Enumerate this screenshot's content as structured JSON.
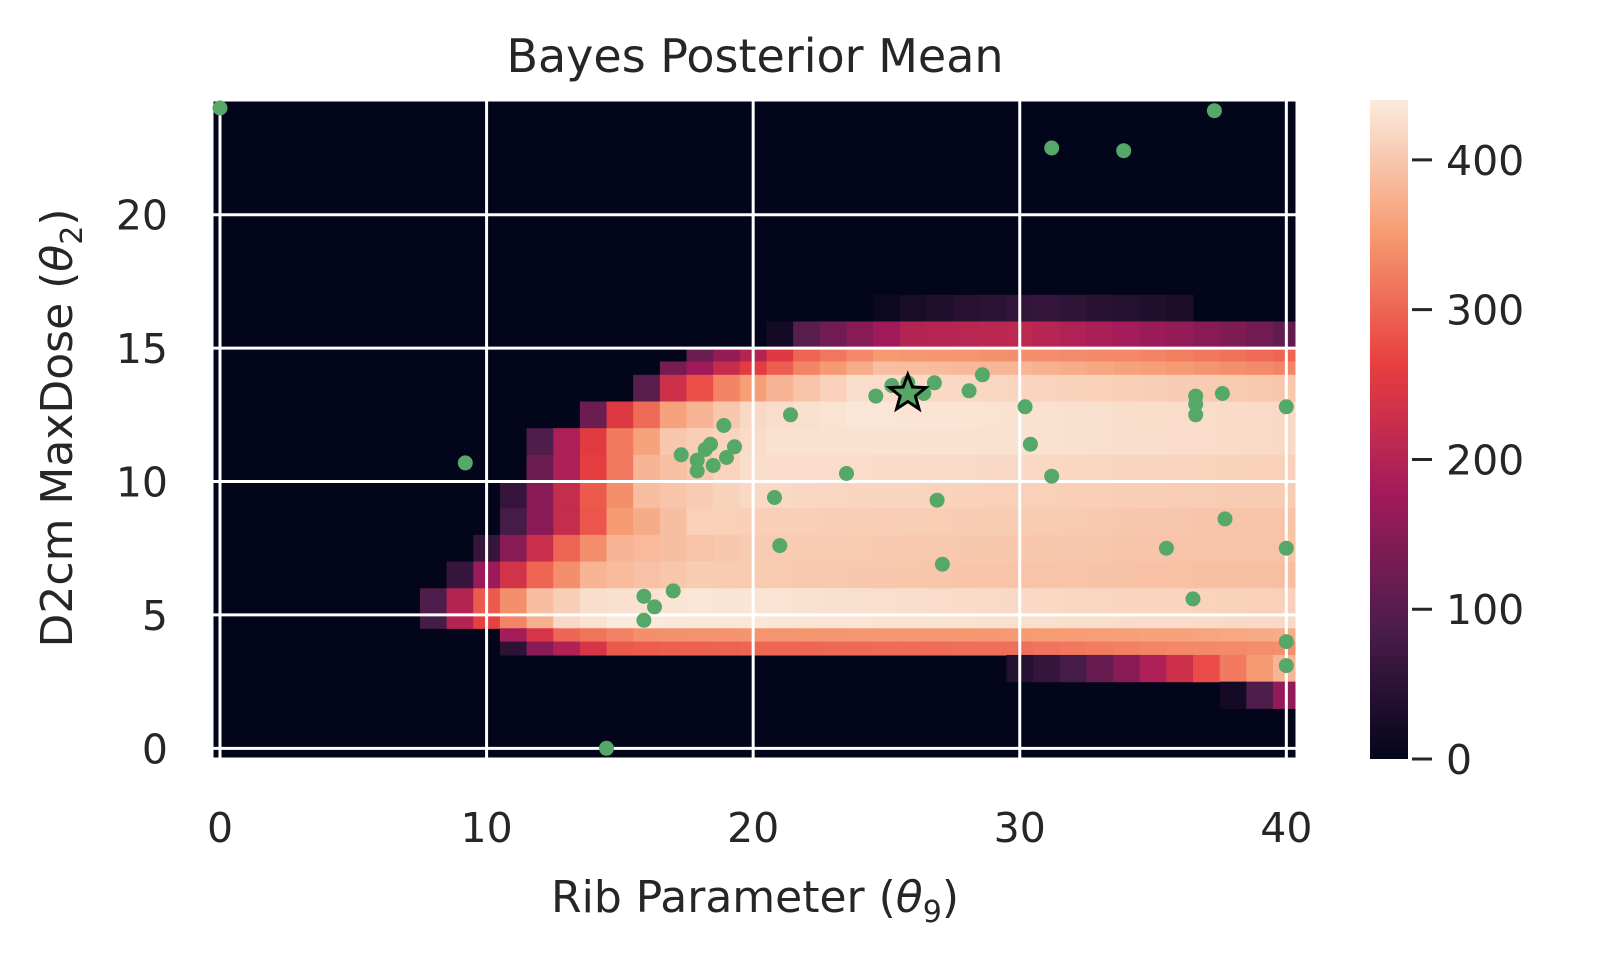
{
  "chart_data": {
    "type": "heatmap",
    "title": "Bayes Posterior Mean",
    "xlabel": "Rib Parameter (θ9)",
    "ylabel": "D2cm MaxDose (θ2)",
    "xlabel_parts": {
      "text": "Rib Parameter (",
      "symbol": "θ",
      "sub": "9",
      "close": ")"
    },
    "ylabel_parts": {
      "text": "D2cm MaxDose (",
      "symbol": "θ",
      "sub": "2",
      "close": ")"
    },
    "xlim": [
      -0.3,
      40.4
    ],
    "ylim": [
      -0.4,
      24.3
    ],
    "xticks": [
      0,
      10,
      20,
      30,
      40
    ],
    "xtick_labels": [
      "0",
      "10",
      "20",
      "30",
      "40"
    ],
    "yticks": [
      0,
      5,
      10,
      15,
      20
    ],
    "ytick_labels": [
      "0",
      "5",
      "10",
      "15",
      "20"
    ],
    "grid": true,
    "grid_color": "#ffffff",
    "heatmap": {
      "x_cells": 41,
      "x_start": -0.5,
      "x_step": 1,
      "rows": [
        {
          "y0": 16.0,
          "y1": 17.0,
          "profile": [
            [
              24,
              0
            ],
            [
              26,
              25
            ],
            [
              28,
              45
            ],
            [
              31,
              60
            ],
            [
              34,
              40
            ],
            [
              36,
              30
            ],
            [
              37,
              0
            ]
          ]
        },
        {
          "y0": 15.0,
          "y1": 16.0,
          "profile": [
            [
              20,
              0
            ],
            [
              21,
              20
            ],
            [
              22,
              100
            ],
            [
              24,
              150
            ],
            [
              26,
              200
            ],
            [
              30,
              210
            ],
            [
              34,
              180
            ],
            [
              38,
              140
            ],
            [
              40,
              110
            ]
          ]
        },
        {
          "y0": 14.5,
          "y1": 15.0,
          "profile": [
            [
              17,
              0
            ],
            [
              18,
              120
            ],
            [
              20,
              200
            ],
            [
              22,
              300
            ],
            [
              25,
              350
            ],
            [
              30,
              340
            ],
            [
              35,
              330
            ],
            [
              40,
              300
            ]
          ]
        },
        {
          "y0": 14.0,
          "y1": 14.5,
          "profile": [
            [
              16,
              0
            ],
            [
              17,
              130
            ],
            [
              19,
              220
            ],
            [
              22,
              330
            ],
            [
              25,
              390
            ],
            [
              30,
              380
            ],
            [
              36,
              350
            ],
            [
              40,
              330
            ]
          ]
        },
        {
          "y0": 13.0,
          "y1": 14.0,
          "profile": [
            [
              15,
              0
            ],
            [
              16,
              100
            ],
            [
              17,
              230
            ],
            [
              19,
              330
            ],
            [
              21,
              380
            ],
            [
              24,
              425
            ],
            [
              30,
              415
            ],
            [
              40,
              400
            ]
          ]
        },
        {
          "y0": 12.0,
          "y1": 13.0,
          "profile": [
            [
              13,
              0
            ],
            [
              14,
              120
            ],
            [
              15,
              250
            ],
            [
              17,
              360
            ],
            [
              20,
              420
            ],
            [
              24,
              435
            ],
            [
              30,
              430
            ],
            [
              40,
              420
            ]
          ]
        },
        {
          "y0": 11.0,
          "y1": 12.0,
          "profile": [
            [
              11,
              0
            ],
            [
              12,
              90
            ],
            [
              13,
              190
            ],
            [
              15,
              320
            ],
            [
              17,
              400
            ],
            [
              21,
              430
            ],
            [
              30,
              430
            ],
            [
              40,
              420
            ]
          ]
        },
        {
          "y0": 10.0,
          "y1": 11.0,
          "profile": [
            [
              11,
              0
            ],
            [
              12,
              120
            ],
            [
              14,
              260
            ],
            [
              16,
              380
            ],
            [
              20,
              425
            ],
            [
              30,
              420
            ],
            [
              40,
              410
            ]
          ]
        },
        {
          "y0": 9.0,
          "y1": 10.0,
          "profile": [
            [
              10,
              0
            ],
            [
              11,
              60
            ],
            [
              12,
              150
            ],
            [
              14,
              290
            ],
            [
              16,
              390
            ],
            [
              20,
              420
            ],
            [
              30,
              410
            ],
            [
              40,
              405
            ]
          ]
        },
        {
          "y0": 8.0,
          "y1": 9.0,
          "profile": [
            [
              10,
              0
            ],
            [
              11,
              80
            ],
            [
              13,
              220
            ],
            [
              15,
              350
            ],
            [
              18,
              410
            ],
            [
              30,
              405
            ],
            [
              40,
              395
            ]
          ]
        },
        {
          "y0": 7.0,
          "y1": 8.0,
          "profile": [
            [
              9,
              0
            ],
            [
              10,
              60
            ],
            [
              11,
              150
            ],
            [
              13,
              300
            ],
            [
              15,
              380
            ],
            [
              20,
              405
            ],
            [
              40,
              395
            ]
          ]
        },
        {
          "y0": 6.0,
          "y1": 7.0,
          "profile": [
            [
              8,
              0
            ],
            [
              9,
              60
            ],
            [
              10,
              170
            ],
            [
              12,
              300
            ],
            [
              14,
              380
            ],
            [
              18,
              405
            ],
            [
              40,
              390
            ]
          ]
        },
        {
          "y0": 5.0,
          "y1": 6.0,
          "profile": [
            [
              7,
              0
            ],
            [
              8,
              90
            ],
            [
              9,
              200
            ],
            [
              10,
              290
            ],
            [
              12,
              390
            ],
            [
              14,
              425
            ],
            [
              18,
              435
            ],
            [
              30,
              420
            ],
            [
              40,
              410
            ]
          ]
        },
        {
          "y0": 4.5,
          "y1": 5.0,
          "profile": [
            [
              7,
              0
            ],
            [
              8,
              80
            ],
            [
              9,
              200
            ],
            [
              11,
              330
            ],
            [
              13,
              420
            ],
            [
              15,
              440
            ],
            [
              20,
              435
            ],
            [
              40,
              420
            ]
          ]
        },
        {
          "y0": 4.0,
          "y1": 4.5,
          "profile": [
            [
              10,
              0
            ],
            [
              11,
              180
            ],
            [
              13,
              300
            ],
            [
              16,
              340
            ],
            [
              20,
              345
            ],
            [
              30,
              350
            ],
            [
              36,
              360
            ],
            [
              40,
              370
            ]
          ]
        },
        {
          "y0": 3.5,
          "y1": 4.0,
          "profile": [
            [
              10,
              0
            ],
            [
              11,
              50
            ],
            [
              12,
              150
            ],
            [
              14,
              240
            ],
            [
              15,
              290
            ],
            [
              20,
              300
            ],
            [
              30,
              310
            ],
            [
              35,
              330
            ],
            [
              40,
              340
            ]
          ]
        },
        {
          "y0": 2.5,
          "y1": 3.5,
          "profile": [
            [
              29,
              0
            ],
            [
              30,
              40
            ],
            [
              32,
              80
            ],
            [
              34,
              150
            ],
            [
              36,
              230
            ],
            [
              38,
              320
            ],
            [
              40,
              380
            ]
          ]
        },
        {
          "y0": 1.5,
          "y1": 2.5,
          "profile": [
            [
              37,
              0
            ],
            [
              38,
              20
            ],
            [
              39,
              90
            ],
            [
              40,
              160
            ]
          ]
        }
      ]
    },
    "colorbar": {
      "range": [
        0,
        440
      ],
      "ticks": [
        0,
        100,
        200,
        300,
        400
      ],
      "tick_labels": [
        "0",
        "100",
        "200",
        "300",
        "400"
      ],
      "colormap": "rocket",
      "stops": [
        "#03051a",
        "#4c1d4b",
        "#a11a5b",
        "#e83f3f",
        "#f69c73",
        "#faebdd"
      ]
    },
    "point_color": "#55a868",
    "points": [
      [
        0.0,
        24.0
      ],
      [
        9.2,
        10.7
      ],
      [
        14.5,
        0.0
      ],
      [
        15.9,
        5.7
      ],
      [
        16.3,
        5.3
      ],
      [
        15.9,
        4.8
      ],
      [
        17.0,
        5.9
      ],
      [
        17.3,
        11.0
      ],
      [
        17.9,
        10.8
      ],
      [
        17.9,
        10.4
      ],
      [
        18.2,
        11.2
      ],
      [
        18.4,
        11.4
      ],
      [
        18.5,
        10.6
      ],
      [
        18.9,
        12.1
      ],
      [
        19.0,
        10.9
      ],
      [
        19.3,
        11.3
      ],
      [
        20.8,
        9.4
      ],
      [
        21.0,
        7.6
      ],
      [
        21.4,
        12.5
      ],
      [
        23.5,
        10.3
      ],
      [
        24.6,
        13.2
      ],
      [
        25.2,
        13.6
      ],
      [
        25.8,
        13.7
      ],
      [
        26.4,
        13.3
      ],
      [
        26.8,
        13.7
      ],
      [
        26.9,
        9.3
      ],
      [
        27.1,
        6.9
      ],
      [
        28.1,
        13.4
      ],
      [
        28.6,
        14.0
      ],
      [
        30.2,
        12.8
      ],
      [
        30.4,
        11.4
      ],
      [
        31.2,
        10.2
      ],
      [
        31.2,
        22.5
      ],
      [
        33.9,
        22.4
      ],
      [
        35.5,
        7.5
      ],
      [
        36.5,
        5.6
      ],
      [
        36.6,
        13.2
      ],
      [
        36.6,
        12.9
      ],
      [
        36.6,
        12.5
      ],
      [
        37.3,
        23.9
      ],
      [
        37.6,
        13.3
      ],
      [
        37.7,
        8.6
      ],
      [
        40.0,
        12.8
      ],
      [
        40.0,
        7.5
      ],
      [
        40.0,
        4.0
      ],
      [
        40.0,
        3.1
      ]
    ],
    "best_point": [
      25.8,
      13.3
    ]
  }
}
